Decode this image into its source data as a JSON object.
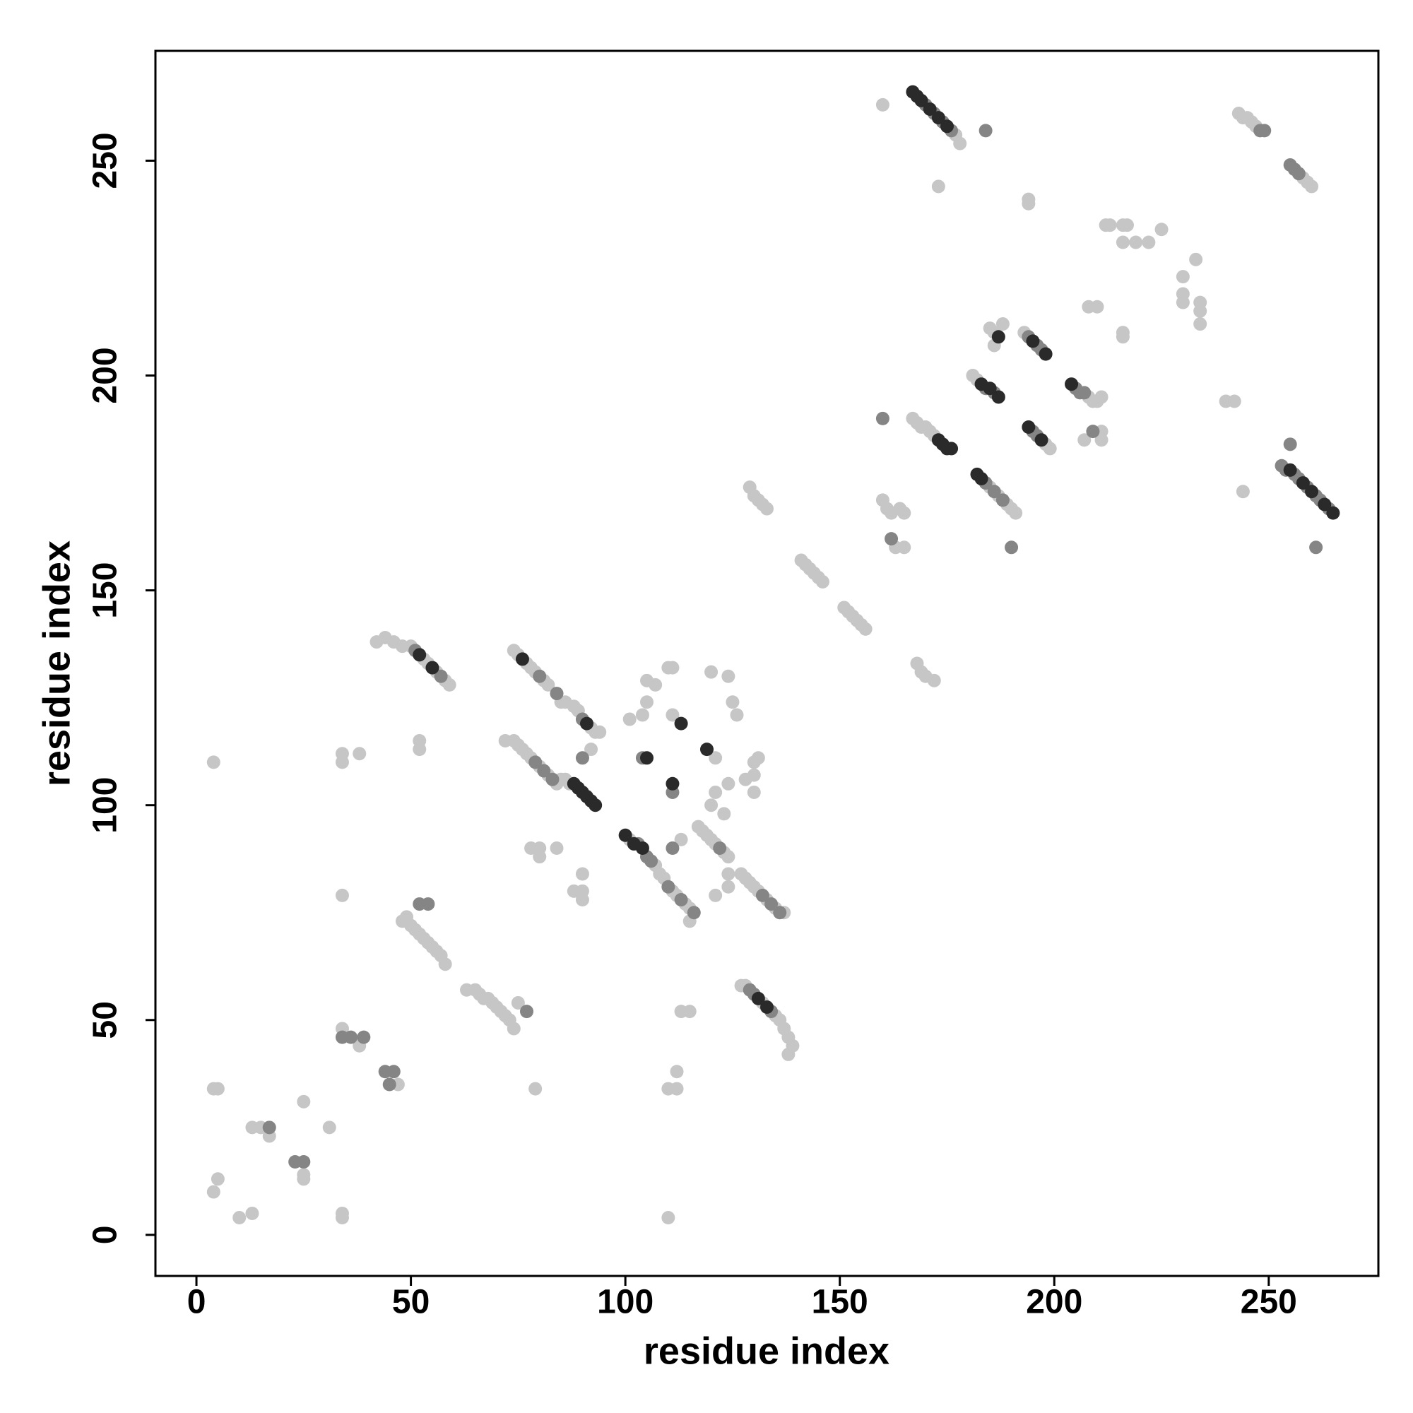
{
  "chart_data": {
    "type": "scatter",
    "xlabel": "residue index",
    "ylabel": "residue index",
    "xlim": [
      -9.56,
      275.56
    ],
    "ylim": [
      -9.56,
      275.56
    ],
    "xticks": [
      0,
      50,
      100,
      150,
      200,
      250
    ],
    "yticks": [
      0,
      50,
      100,
      150,
      200,
      250
    ],
    "series": [
      {
        "color": "#c6c6c6",
        "x": [
          4,
          4,
          5,
          4,
          5,
          10,
          13,
          13,
          15,
          17,
          25,
          25,
          25,
          31,
          34,
          34,
          34,
          34,
          34,
          38,
          34,
          38,
          47,
          48,
          49,
          50,
          51,
          52,
          53,
          54,
          55,
          56,
          57,
          58,
          52,
          52,
          42,
          44,
          46,
          48,
          50,
          53,
          54,
          56,
          58,
          59,
          63,
          65,
          66,
          67,
          68,
          69,
          70,
          71,
          72,
          73,
          74,
          75,
          79,
          74,
          75,
          77,
          78,
          79,
          81,
          82,
          85,
          86,
          88,
          89,
          92,
          93,
          94,
          72,
          74,
          75,
          76,
          77,
          78,
          80,
          82,
          84,
          85,
          86,
          87,
          80,
          78,
          80,
          84,
          92,
          90,
          90,
          88,
          90,
          101,
          104,
          105,
          105,
          107,
          110,
          111,
          111,
          113,
          121,
          120,
          124,
          125,
          126,
          120,
          121,
          124,
          123,
          128,
          130,
          130,
          131,
          130,
          124,
          121,
          124,
          113,
          115,
          110,
          112,
          112,
          110,
          101,
          107,
          108,
          109,
          111,
          112,
          114,
          115,
          115,
          117,
          118,
          119,
          120,
          121,
          123,
          124,
          127,
          128,
          129,
          130,
          131,
          133,
          135,
          137,
          127,
          128,
          132,
          135,
          136,
          137,
          138,
          139,
          138,
          129,
          130,
          131,
          132,
          133,
          141,
          142,
          143,
          144,
          145,
          146,
          151,
          152,
          153,
          154,
          155,
          156,
          160,
          161,
          162,
          164,
          165,
          160,
          163,
          165,
          168,
          169,
          170,
          172,
          167,
          168,
          169,
          170,
          171,
          172,
          177,
          178,
          173,
          185,
          187,
          189,
          190,
          191,
          181,
          182,
          185,
          186,
          186,
          188,
          193,
          198,
          199,
          208,
          209,
          210,
          211,
          207,
          211,
          211,
          208,
          210,
          212,
          213,
          216,
          217,
          216,
          219,
          222,
          225,
          216,
          216,
          230,
          233,
          230,
          230,
          234,
          234,
          234,
          240,
          242,
          244,
          243,
          244,
          245,
          246,
          247,
          258,
          259,
          260,
          194,
          194
        ],
        "values": [
          110,
          34,
          34,
          10,
          13,
          4,
          5,
          25,
          25,
          23,
          13,
          14,
          31,
          25,
          5,
          4,
          79,
          110,
          112,
          112,
          48,
          44,
          35,
          73,
          74,
          72,
          71,
          70,
          69,
          68,
          67,
          66,
          65,
          63,
          113,
          115,
          138,
          139,
          138,
          137,
          137,
          134,
          133,
          131,
          129,
          128,
          57,
          57,
          56,
          55,
          55,
          54,
          53,
          52,
          51,
          50,
          48,
          54,
          34,
          136,
          135,
          133,
          132,
          131,
          129,
          128,
          124,
          124,
          123,
          122,
          118,
          117,
          117,
          115,
          115,
          114,
          113,
          112,
          111,
          109,
          107,
          105,
          106,
          106,
          105,
          90,
          90,
          88,
          90,
          113,
          84,
          80,
          80,
          78,
          120,
          121,
          124,
          129,
          128,
          132,
          132,
          121,
          92,
          111,
          131,
          130,
          124,
          121,
          100,
          103,
          105,
          98,
          106,
          107,
          110,
          111,
          103,
          84,
          79,
          81,
          52,
          52,
          34,
          34,
          38,
          4,
          92,
          86,
          84,
          83,
          80,
          79,
          77,
          76,
          73,
          95,
          94,
          93,
          92,
          91,
          89,
          88,
          84,
          83,
          82,
          81,
          80,
          78,
          76,
          75,
          58,
          58,
          54,
          51,
          50,
          48,
          46,
          44,
          42,
          174,
          172,
          171,
          170,
          169,
          157,
          156,
          155,
          154,
          153,
          152,
          146,
          145,
          144,
          143,
          142,
          141,
          171,
          169,
          168,
          169,
          168,
          263,
          160,
          160,
          133,
          131,
          130,
          129,
          190,
          189,
          188,
          188,
          187,
          186,
          256,
          254,
          244,
          174,
          172,
          170,
          169,
          168,
          200,
          199,
          211,
          210,
          207,
          212,
          210,
          184,
          183,
          195,
          194,
          194,
          195,
          185,
          185,
          187,
          216,
          216,
          235,
          235,
          235,
          235,
          231,
          231,
          231,
          234,
          210,
          209,
          223,
          227,
          219,
          217,
          217,
          215,
          212,
          194,
          194,
          173,
          261,
          260,
          260,
          259,
          258,
          246,
          245,
          244,
          241,
          240
        ]
      },
      {
        "color": "#858585",
        "x": [
          17,
          23,
          25,
          34,
          36,
          39,
          44,
          46,
          45,
          52,
          54,
          51,
          57,
          77,
          90,
          90,
          104,
          111,
          111,
          103,
          105,
          106,
          110,
          113,
          132,
          134,
          136,
          129,
          130,
          134,
          160,
          162,
          170,
          172,
          174,
          176,
          184,
          184,
          186,
          188,
          190,
          184,
          186,
          194,
          196,
          197,
          195,
          196,
          205,
          206,
          207,
          209,
          248,
          249,
          255,
          256,
          257,
          253,
          254,
          256,
          257,
          259,
          261,
          262,
          264,
          255,
          261,
          80,
          84,
          79,
          81,
          83,
          116,
          122
        ],
        "values": [
          25,
          17,
          17,
          46,
          46,
          46,
          38,
          38,
          35,
          77,
          77,
          136,
          130,
          52,
          120,
          111,
          111,
          103,
          90,
          91,
          88,
          87,
          81,
          78,
          79,
          77,
          75,
          57,
          56,
          52,
          190,
          162,
          263,
          261,
          259,
          257,
          257,
          175,
          173,
          171,
          160,
          197,
          196,
          209,
          207,
          206,
          187,
          186,
          197,
          196,
          196,
          187,
          257,
          257,
          249,
          248,
          247,
          179,
          178,
          177,
          176,
          174,
          172,
          171,
          169,
          184,
          160,
          130,
          126,
          110,
          108,
          106,
          75,
          90
        ]
      },
      {
        "color": "#2a2a2a",
        "x": [
          52,
          55,
          76,
          91,
          88,
          89,
          90,
          91,
          92,
          93,
          113,
          105,
          111,
          119,
          100,
          102,
          104,
          131,
          133,
          173,
          174,
          175,
          176,
          167,
          168,
          169,
          171,
          173,
          175,
          182,
          183,
          183,
          185,
          187,
          187,
          195,
          198,
          194,
          197,
          204,
          255,
          258,
          260,
          263,
          265
        ],
        "values": [
          135,
          132,
          134,
          119,
          105,
          104,
          103,
          102,
          101,
          100,
          119,
          111,
          105,
          113,
          93,
          91,
          90,
          55,
          53,
          185,
          184,
          183,
          183,
          266,
          265,
          264,
          262,
          260,
          258,
          177,
          176,
          198,
          197,
          195,
          209,
          208,
          205,
          188,
          185,
          198,
          178,
          175,
          173,
          170,
          168
        ]
      }
    ]
  }
}
